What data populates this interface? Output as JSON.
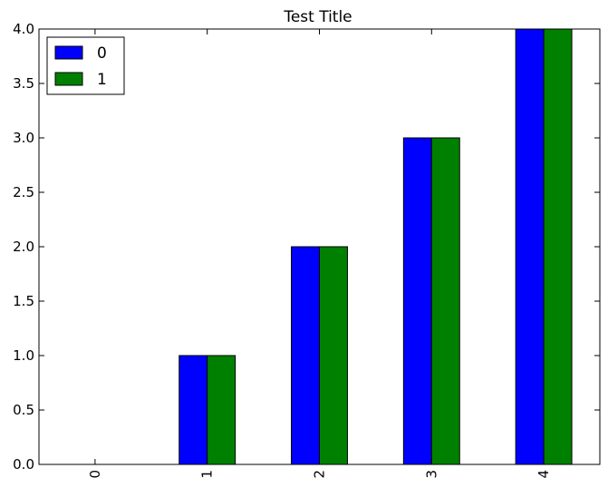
{
  "chart_data": {
    "type": "bar",
    "title": "Test Title",
    "xlabel": "",
    "ylabel": "",
    "categories": [
      "0",
      "1",
      "2",
      "3",
      "4"
    ],
    "series": [
      {
        "name": "0",
        "values": [
          0,
          1,
          2,
          3,
          4
        ],
        "color": "#0000ff"
      },
      {
        "name": "1",
        "values": [
          0,
          1,
          2,
          3,
          4
        ],
        "color": "#008000"
      }
    ],
    "ylim": [
      0,
      4
    ],
    "yticks": [
      "0.0",
      "0.5",
      "1.0",
      "1.5",
      "2.0",
      "2.5",
      "3.0",
      "3.5",
      "4.0"
    ],
    "grid": false,
    "legend_position": "top-left",
    "xtick_rotation": "vertical"
  }
}
